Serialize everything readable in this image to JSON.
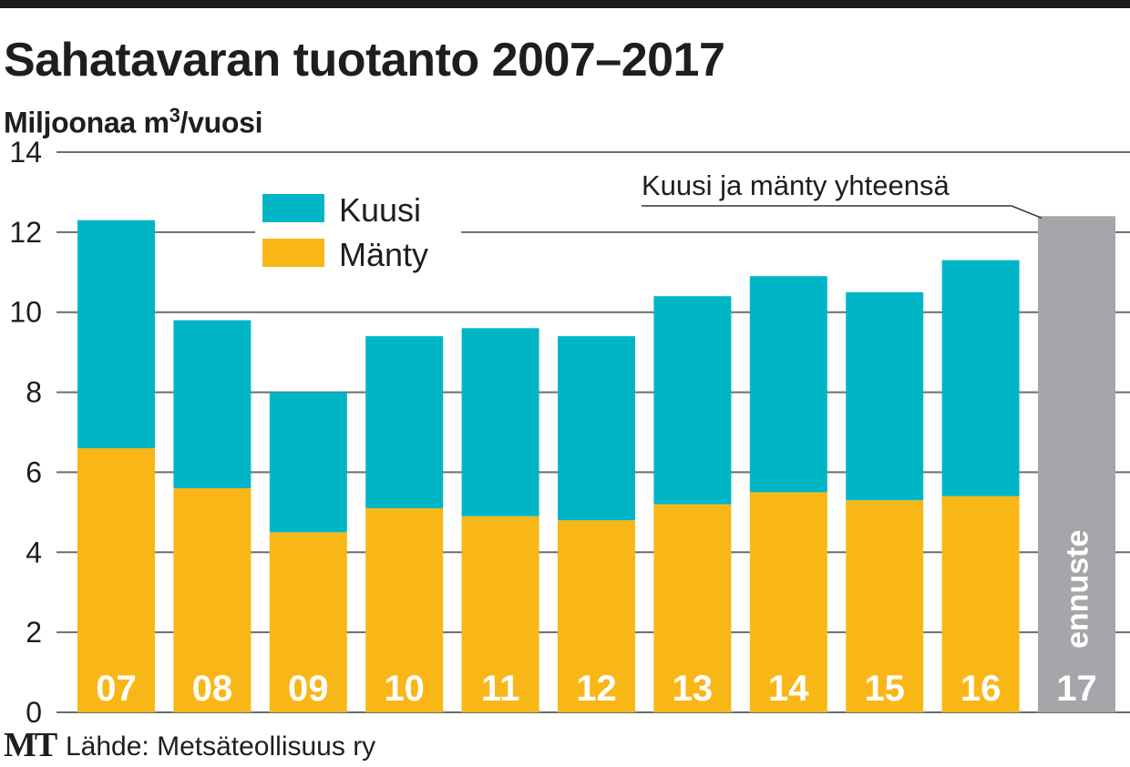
{
  "chart_data": {
    "type": "bar",
    "stacked": true,
    "title": "Sahatavaran tuotanto 2007–2017",
    "subtitle": "Miljoonaa m3/vuosi",
    "subtitle_parts": {
      "before": "Miljoonaa m",
      "sup": "3",
      "after": "/vuosi"
    },
    "xlabel": "",
    "ylabel": "Miljoonaa m3/vuosi",
    "ylim": [
      0,
      14
    ],
    "yticks": [
      0,
      2,
      4,
      6,
      8,
      10,
      12,
      14
    ],
    "grid": true,
    "legend_position": "top-left",
    "categories": [
      "07",
      "08",
      "09",
      "10",
      "11",
      "12",
      "13",
      "14",
      "15",
      "16",
      "17"
    ],
    "series": [
      {
        "name": "Mänty",
        "color": "#f9b717",
        "values": [
          6.6,
          5.6,
          4.5,
          5.1,
          4.9,
          4.8,
          5.2,
          5.5,
          5.3,
          5.4,
          null
        ]
      },
      {
        "name": "Kuusi",
        "color": "#00b6c6",
        "values": [
          5.7,
          4.2,
          3.5,
          4.3,
          4.7,
          4.6,
          5.2,
          5.4,
          5.2,
          5.9,
          null
        ]
      },
      {
        "name": "Kuusi ja mänty yhteensä",
        "color": "#a5a6a9",
        "values": [
          null,
          null,
          null,
          null,
          null,
          null,
          null,
          null,
          null,
          null,
          12.4
        ]
      }
    ],
    "totals": [
      12.3,
      9.8,
      8.0,
      9.4,
      9.6,
      9.4,
      10.4,
      10.9,
      10.5,
      11.3,
      12.4
    ],
    "legend": [
      {
        "name": "Kuusi",
        "color": "#00b6c6"
      },
      {
        "name": "Mänty",
        "color": "#f9b717"
      }
    ],
    "annotations": {
      "total_label": "Kuusi ja mänty yhteensä",
      "forecast_label": "ennuste"
    }
  },
  "footer": {
    "logo": "MT",
    "source": "Lähde: Metsäteollisuus ry"
  },
  "colors": {
    "kuusi": "#00b6c6",
    "manty": "#f9b717",
    "forecast": "#a5a6a9",
    "text": "#1e1e1e",
    "grid": "#6d6d6d"
  }
}
